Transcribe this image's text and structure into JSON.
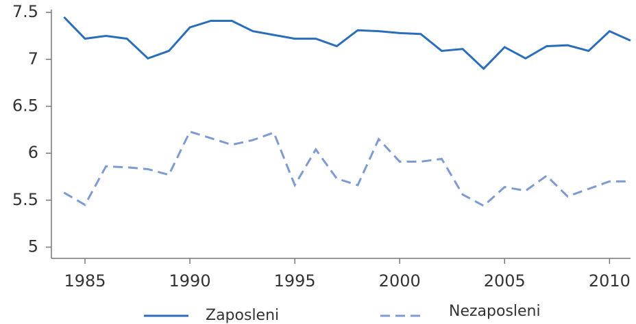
{
  "chart_data": {
    "type": "line",
    "x": [
      1984,
      1985,
      1986,
      1987,
      1988,
      1989,
      1990,
      1991,
      1992,
      1993,
      1994,
      1995,
      1996,
      1997,
      1998,
      1999,
      2000,
      2001,
      2002,
      2003,
      2004,
      2005,
      2006,
      2007,
      2008,
      2009,
      2010,
      2011
    ],
    "series": [
      {
        "name": "Zaposleni",
        "color": "#2a6ebb",
        "dash": false,
        "values": [
          7.45,
          7.22,
          7.25,
          7.22,
          7.01,
          7.09,
          7.34,
          7.41,
          7.41,
          7.3,
          7.26,
          7.22,
          7.22,
          7.14,
          7.31,
          7.3,
          7.28,
          7.27,
          7.09,
          7.11,
          6.9,
          7.13,
          7.01,
          7.14,
          7.15,
          7.09,
          7.3,
          7.2
        ]
      },
      {
        "name": "Nezaposleni",
        "color": "#7d9bd2",
        "dash": true,
        "values": [
          5.58,
          5.45,
          5.86,
          5.85,
          5.83,
          5.77,
          6.23,
          6.16,
          6.09,
          6.14,
          6.22,
          5.66,
          6.04,
          5.73,
          5.66,
          6.15,
          5.91,
          5.91,
          5.94,
          5.56,
          5.44,
          5.64,
          5.6,
          5.76,
          5.54,
          5.62,
          5.7,
          5.7
        ]
      }
    ],
    "xlim": [
      1983.4,
      2011
    ],
    "xticks": [
      1985,
      1990,
      1995,
      2000,
      2005,
      2010
    ],
    "ylim": [
      4.88,
      7.53
    ],
    "yticks": [
      5,
      5.5,
      6,
      6.5,
      7,
      7.5
    ],
    "grid": false,
    "legend": "bottom"
  }
}
